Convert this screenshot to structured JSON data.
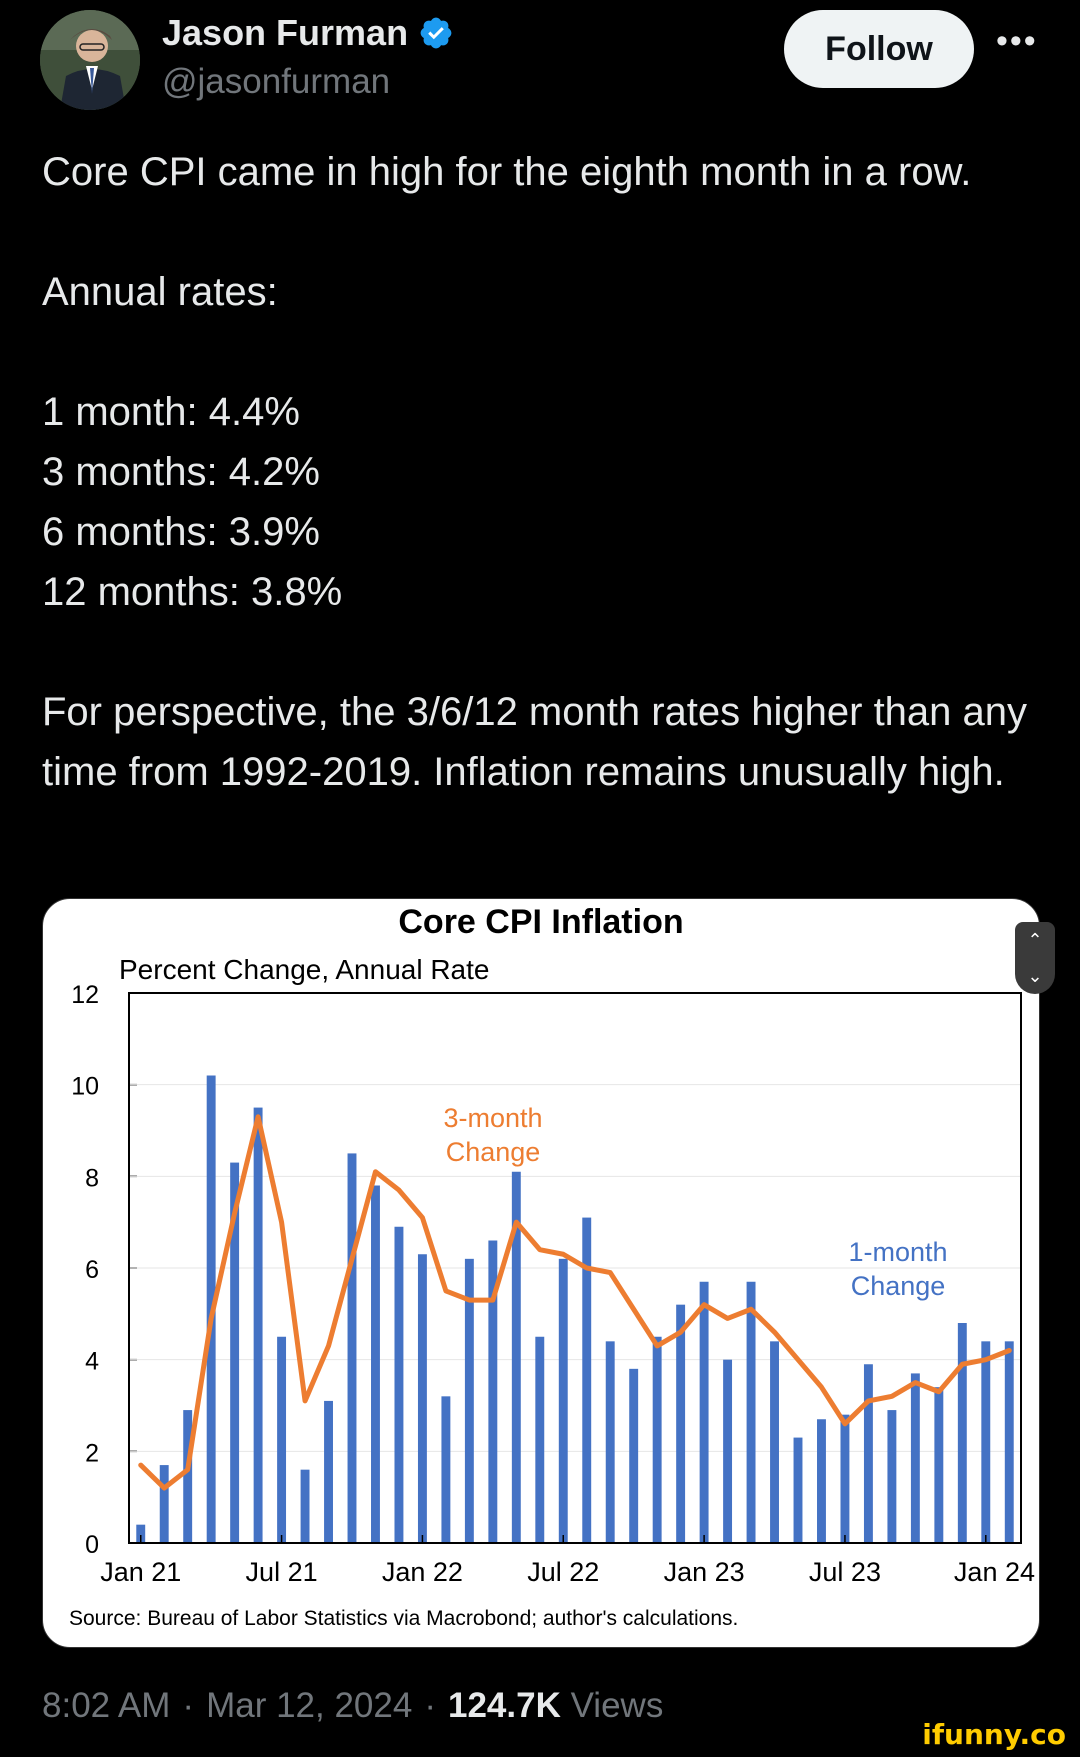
{
  "author": {
    "name": "Jason Furman",
    "handle": "@jasonfurman",
    "verified_icon": "verified-badge-icon",
    "verified_color": "#1d9bf0"
  },
  "actions": {
    "follow_label": "Follow",
    "more_icon": "more-options-icon"
  },
  "tweet": {
    "line1": "Core CPI came in high for the eighth month in a row.",
    "line2": "Annual rates:",
    "rates": [
      "1 month: 4.4%",
      "3 months: 4.2%",
      "6 months: 3.9%",
      "12 months: 3.8%"
    ],
    "line3": "For perspective, the 3/6/12 month rates higher than any time from 1992-2019. Inflation remains unusually high."
  },
  "meta": {
    "time": "8:02 AM",
    "separator1": "·",
    "date": "Mar 12, 2024",
    "separator2": "·",
    "views_count": "124.7K",
    "views_label": "Views"
  },
  "watermark": "ifunny.co",
  "chart_data": {
    "type": "bar",
    "title": "Core CPI Inflation",
    "subtitle": "Percent Change, Annual Rate",
    "ylabel": "",
    "xlabel": "",
    "ylim": [
      0,
      12
    ],
    "yticks": [
      0,
      2,
      4,
      6,
      8,
      10,
      12
    ],
    "xtick_labels": [
      "Jan 21",
      "Jul 21",
      "Jan 22",
      "Jul 22",
      "Jan 23",
      "Jul 23",
      "Jan 24"
    ],
    "categories": [
      "Jan 21",
      "Feb 21",
      "Mar 21",
      "Apr 21",
      "May 21",
      "Jun 21",
      "Jul 21",
      "Aug 21",
      "Sep 21",
      "Oct 21",
      "Nov 21",
      "Dec 21",
      "Jan 22",
      "Feb 22",
      "Mar 22",
      "Apr 22",
      "May 22",
      "Jun 22",
      "Jul 22",
      "Aug 22",
      "Sep 22",
      "Oct 22",
      "Nov 22",
      "Dec 22",
      "Jan 23",
      "Feb 23",
      "Mar 23",
      "Apr 23",
      "May 23",
      "Jun 23",
      "Jul 23",
      "Aug 23",
      "Sep 23",
      "Oct 23",
      "Nov 23",
      "Dec 23",
      "Jan 24",
      "Feb 24"
    ],
    "series": [
      {
        "name": "1-month Change",
        "type": "bar",
        "color": "#4472c4",
        "values": [
          0.4,
          1.7,
          2.9,
          10.2,
          8.3,
          9.5,
          4.5,
          1.6,
          3.1,
          8.5,
          7.8,
          6.9,
          6.3,
          3.2,
          6.2,
          6.6,
          8.1,
          4.5,
          6.2,
          7.1,
          4.4,
          3.8,
          4.5,
          5.2,
          5.7,
          4.0,
          5.7,
          4.4,
          2.3,
          2.7,
          2.8,
          3.9,
          2.9,
          3.7,
          3.4,
          4.8,
          4.4,
          4.4
        ]
      },
      {
        "name": "3-month Change",
        "type": "line",
        "color": "#ed7d31",
        "values": [
          1.7,
          1.2,
          1.6,
          4.9,
          7.2,
          9.3,
          7.0,
          3.1,
          4.3,
          6.2,
          8.1,
          7.7,
          7.1,
          5.5,
          5.3,
          5.3,
          7.0,
          6.4,
          6.3,
          6.0,
          5.9,
          5.1,
          4.3,
          4.6,
          5.2,
          4.9,
          5.1,
          4.6,
          4.0,
          3.4,
          2.6,
          3.1,
          3.2,
          3.5,
          3.3,
          3.9,
          4.0,
          4.2
        ]
      }
    ],
    "annotations": [
      "3-month Change",
      "1-month Change"
    ],
    "source": "Source: Bureau of Labor Statistics via Macrobond; author's calculations."
  }
}
